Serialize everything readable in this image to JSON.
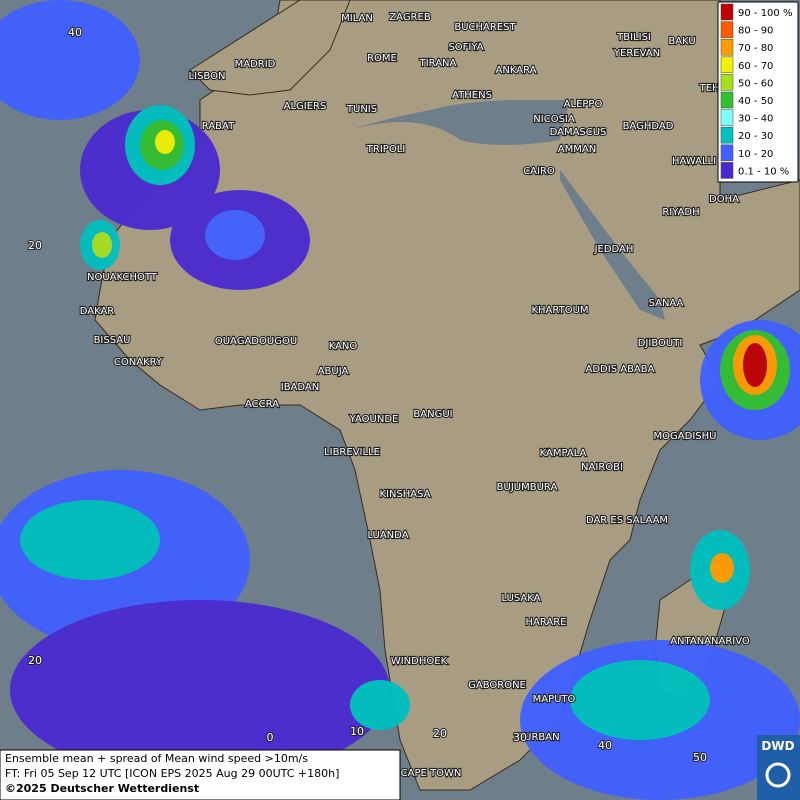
{
  "legend": {
    "items": [
      {
        "label": "90 - 100 %",
        "color": "#c00000"
      },
      {
        "label": "80 - 90",
        "color": "#ff5a00"
      },
      {
        "label": "70 - 80",
        "color": "#ff9c00"
      },
      {
        "label": "60 - 70",
        "color": "#f0f000"
      },
      {
        "label": "50 - 60",
        "color": "#a8e020"
      },
      {
        "label": "40 - 50",
        "color": "#30c030"
      },
      {
        "label": "30 - 40",
        "color": "#80ffff"
      },
      {
        "label": "20 - 30",
        "color": "#00c0c0"
      },
      {
        "label": "10 - 20",
        "color": "#4060ff"
      },
      {
        "label": "0.1 - 10 %",
        "color": "#4a2ad0"
      }
    ]
  },
  "cities": [
    "MILAN",
    "ZAGREB",
    "BUCHAREST",
    "SOFIYA",
    "TBILISI",
    "BAKU",
    "YEREVAN",
    "MADRID",
    "ROME",
    "TIRANA",
    "ANKARA",
    "LISBON",
    "TEHRAN",
    "ATHENS",
    "ALEPPO",
    "ALGIERS",
    "TUNIS",
    "RABAT",
    "NICOSIA",
    "BAGHDAD",
    "DAMASCUS",
    "AMMAN",
    "TRIPOLI",
    "HAWALLI",
    "CAIRO",
    "DOHA",
    "RIYADH",
    "JEDDAH",
    "NOUAKCHOTT",
    "KHARTOUM",
    "SANAA",
    "DAKAR",
    "BISSAU",
    "DJIBOUTI",
    "OUAGADOUGOU",
    "KANO",
    "CONAKRY",
    "ADDIS ABABA",
    "ABUJA",
    "IBADAN",
    "ACCRA",
    "YAOUNDE",
    "BANGUI",
    "MOGADISHU",
    "LIBREVILLE",
    "KAMPALA",
    "NAIROBI",
    "KINSHASA",
    "BUJUMBURA",
    "DAR ES SALAAM",
    "LUANDA",
    "LUSAKA",
    "HARARE",
    "ANTANANARIVO",
    "WINDHOEK",
    "GABORONE",
    "MAPUTO",
    "DURBAN",
    "CAPE TOWN"
  ],
  "grid_labels": {
    "lat": [
      40,
      20,
      20
    ],
    "lon": [
      0,
      10,
      20,
      30,
      40,
      50
    ]
  },
  "caption": [
    "Ensemble mean + spread of Mean wind speed >10m/s",
    "FT: Fri 05 Sep 12 UTC [ICON EPS 2025 Aug 29 00UTC +180h]",
    "©2025 Deutscher Wetterdienst"
  ],
  "logo": "DWD"
}
